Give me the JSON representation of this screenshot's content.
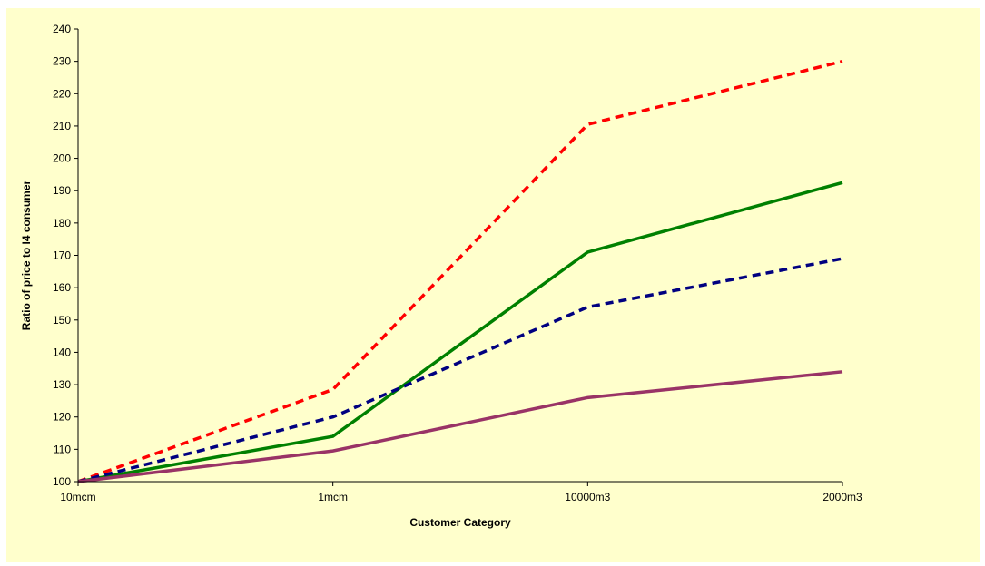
{
  "chart_data": {
    "type": "line",
    "title": "",
    "xlabel": "Customer Category",
    "ylabel": "Ratio of price to I4 consumer",
    "categories": [
      "10mcm",
      "1mcm",
      "10000m3",
      "2000m3"
    ],
    "ylim": [
      100,
      240
    ],
    "yticks": [
      100,
      110,
      120,
      130,
      140,
      150,
      160,
      170,
      180,
      190,
      200,
      210,
      220,
      230,
      240
    ],
    "grid": false,
    "legend": "none",
    "series": [
      {
        "values": [
          100,
          128.5,
          210.5,
          230
        ],
        "color": "#ff0000",
        "style": "dashed"
      },
      {
        "values": [
          100,
          114,
          171,
          192.5
        ],
        "color": "#008000",
        "style": "solid"
      },
      {
        "values": [
          100,
          120,
          154,
          169
        ],
        "color": "#000080",
        "style": "dashed"
      },
      {
        "values": [
          100,
          109.5,
          126,
          134
        ],
        "color": "#993366",
        "style": "solid"
      }
    ]
  }
}
